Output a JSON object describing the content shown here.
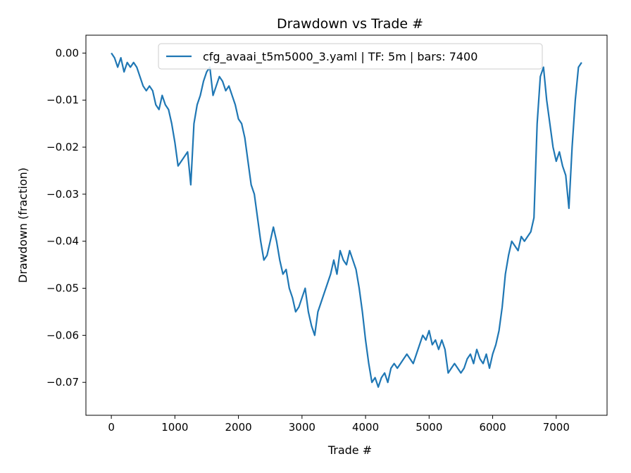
{
  "chart_data": {
    "type": "line",
    "title": "Drawdown vs Trade #",
    "xlabel": "Trade #",
    "ylabel": "Drawdown (fraction)",
    "xlim": [
      -400,
      7800
    ],
    "ylim": [
      -0.077,
      0.0038
    ],
    "xticks": [
      0,
      1000,
      2000,
      3000,
      4000,
      5000,
      6000,
      7000
    ],
    "xtick_labels": [
      "0",
      "1000",
      "2000",
      "3000",
      "4000",
      "5000",
      "6000",
      "7000"
    ],
    "yticks": [
      0.0,
      -0.01,
      -0.02,
      -0.03,
      -0.04,
      -0.05,
      -0.06,
      -0.07
    ],
    "ytick_labels": [
      "0.00",
      "−0.01",
      "−0.02",
      "−0.03",
      "−0.04",
      "−0.05",
      "−0.06",
      "−0.07"
    ],
    "grid": false,
    "legend_position": "top-center",
    "series": [
      {
        "name": "cfg_avaai_t5m5000_3.yaml | TF: 5m | bars: 7400",
        "color": "#1f77b4",
        "x": [
          0,
          50,
          100,
          150,
          200,
          250,
          300,
          350,
          400,
          450,
          500,
          550,
          600,
          650,
          700,
          750,
          800,
          850,
          900,
          950,
          1000,
          1050,
          1100,
          1150,
          1200,
          1250,
          1300,
          1350,
          1400,
          1450,
          1500,
          1550,
          1600,
          1650,
          1700,
          1750,
          1800,
          1850,
          1900,
          1950,
          2000,
          2050,
          2100,
          2150,
          2200,
          2250,
          2300,
          2350,
          2400,
          2450,
          2500,
          2550,
          2600,
          2650,
          2700,
          2750,
          2800,
          2850,
          2900,
          2950,
          3000,
          3050,
          3100,
          3150,
          3200,
          3250,
          3300,
          3350,
          3400,
          3450,
          3500,
          3550,
          3600,
          3650,
          3700,
          3750,
          3800,
          3850,
          3900,
          3950,
          4000,
          4050,
          4100,
          4150,
          4200,
          4250,
          4300,
          4350,
          4400,
          4450,
          4500,
          4550,
          4600,
          4650,
          4700,
          4750,
          4800,
          4850,
          4900,
          4950,
          5000,
          5050,
          5100,
          5150,
          5200,
          5250,
          5300,
          5350,
          5400,
          5450,
          5500,
          5550,
          5600,
          5650,
          5700,
          5750,
          5800,
          5850,
          5900,
          5950,
          6000,
          6050,
          6100,
          6150,
          6200,
          6250,
          6300,
          6350,
          6400,
          6450,
          6500,
          6550,
          6600,
          6650,
          6700,
          6750,
          6800,
          6850,
          6900,
          6950,
          7000,
          7050,
          7100,
          7150,
          7200,
          7250,
          7300,
          7350,
          7400
        ],
        "values": [
          0.0,
          -0.001,
          -0.003,
          -0.001,
          -0.004,
          -0.002,
          -0.003,
          -0.002,
          -0.003,
          -0.005,
          -0.007,
          -0.008,
          -0.007,
          -0.008,
          -0.011,
          -0.012,
          -0.009,
          -0.011,
          -0.012,
          -0.015,
          -0.019,
          -0.024,
          -0.023,
          -0.022,
          -0.021,
          -0.028,
          -0.015,
          -0.011,
          -0.009,
          -0.006,
          -0.004,
          -0.003,
          -0.009,
          -0.007,
          -0.005,
          -0.006,
          -0.008,
          -0.007,
          -0.009,
          -0.011,
          -0.014,
          -0.015,
          -0.018,
          -0.023,
          -0.028,
          -0.03,
          -0.035,
          -0.04,
          -0.044,
          -0.043,
          -0.04,
          -0.037,
          -0.04,
          -0.044,
          -0.047,
          -0.046,
          -0.05,
          -0.052,
          -0.055,
          -0.054,
          -0.052,
          -0.05,
          -0.055,
          -0.058,
          -0.06,
          -0.055,
          -0.053,
          -0.051,
          -0.049,
          -0.047,
          -0.044,
          -0.047,
          -0.042,
          -0.044,
          -0.045,
          -0.042,
          -0.044,
          -0.046,
          -0.05,
          -0.055,
          -0.061,
          -0.066,
          -0.07,
          -0.069,
          -0.071,
          -0.069,
          -0.068,
          -0.07,
          -0.067,
          -0.066,
          -0.067,
          -0.066,
          -0.065,
          -0.064,
          -0.065,
          -0.066,
          -0.064,
          -0.062,
          -0.06,
          -0.061,
          -0.059,
          -0.062,
          -0.061,
          -0.063,
          -0.061,
          -0.063,
          -0.068,
          -0.067,
          -0.066,
          -0.067,
          -0.068,
          -0.067,
          -0.065,
          -0.064,
          -0.066,
          -0.063,
          -0.065,
          -0.066,
          -0.064,
          -0.067,
          -0.064,
          -0.062,
          -0.059,
          -0.054,
          -0.047,
          -0.043,
          -0.04,
          -0.041,
          -0.042,
          -0.039,
          -0.04,
          -0.039,
          -0.038,
          -0.035,
          -0.015,
          -0.005,
          -0.003,
          -0.01,
          -0.015,
          -0.02,
          -0.023,
          -0.021,
          -0.024,
          -0.026,
          -0.033,
          -0.02,
          -0.01,
          -0.003,
          -0.002
        ]
      }
    ]
  }
}
